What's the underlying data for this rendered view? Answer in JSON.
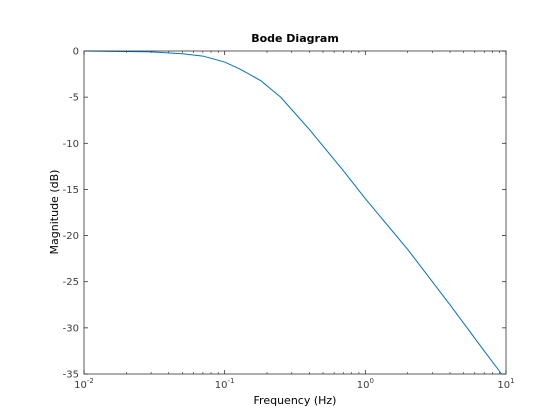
{
  "chart_data": {
    "type": "line",
    "title": "Bode Diagram",
    "xlabel": "Frequency  (Hz)",
    "ylabel": "Magnitude (dB)",
    "xscale": "log",
    "xlim": [
      0.01,
      10
    ],
    "ylim": [
      -35,
      0
    ],
    "grid": false,
    "x_ticks": [
      {
        "value": 0.01,
        "base": "10",
        "exp": "-2"
      },
      {
        "value": 0.1,
        "base": "10",
        "exp": "-1"
      },
      {
        "value": 1,
        "base": "10",
        "exp": "0"
      },
      {
        "value": 10,
        "base": "10",
        "exp": "1"
      }
    ],
    "y_ticks": [
      {
        "value": 0,
        "label": "0"
      },
      {
        "value": -5,
        "label": "-5"
      },
      {
        "value": -10,
        "label": "-10"
      },
      {
        "value": -15,
        "label": "-15"
      },
      {
        "value": -20,
        "label": "-20"
      },
      {
        "value": -25,
        "label": "-25"
      },
      {
        "value": -30,
        "label": "-30"
      },
      {
        "value": -35,
        "label": "-35"
      }
    ],
    "series": [
      {
        "color": "#0072bd",
        "x": [
          0.01,
          0.02,
          0.03,
          0.05,
          0.07,
          0.1,
          0.13,
          0.18,
          0.25,
          0.4,
          0.7,
          1,
          2,
          4,
          7,
          9.3
        ],
        "y": [
          0,
          -0.05,
          -0.1,
          -0.3,
          -0.55,
          -1.2,
          -2.0,
          -3.2,
          -5.0,
          -8.5,
          -13.0,
          -16.0,
          -21.5,
          -27.5,
          -32.5,
          -35
        ]
      }
    ]
  }
}
